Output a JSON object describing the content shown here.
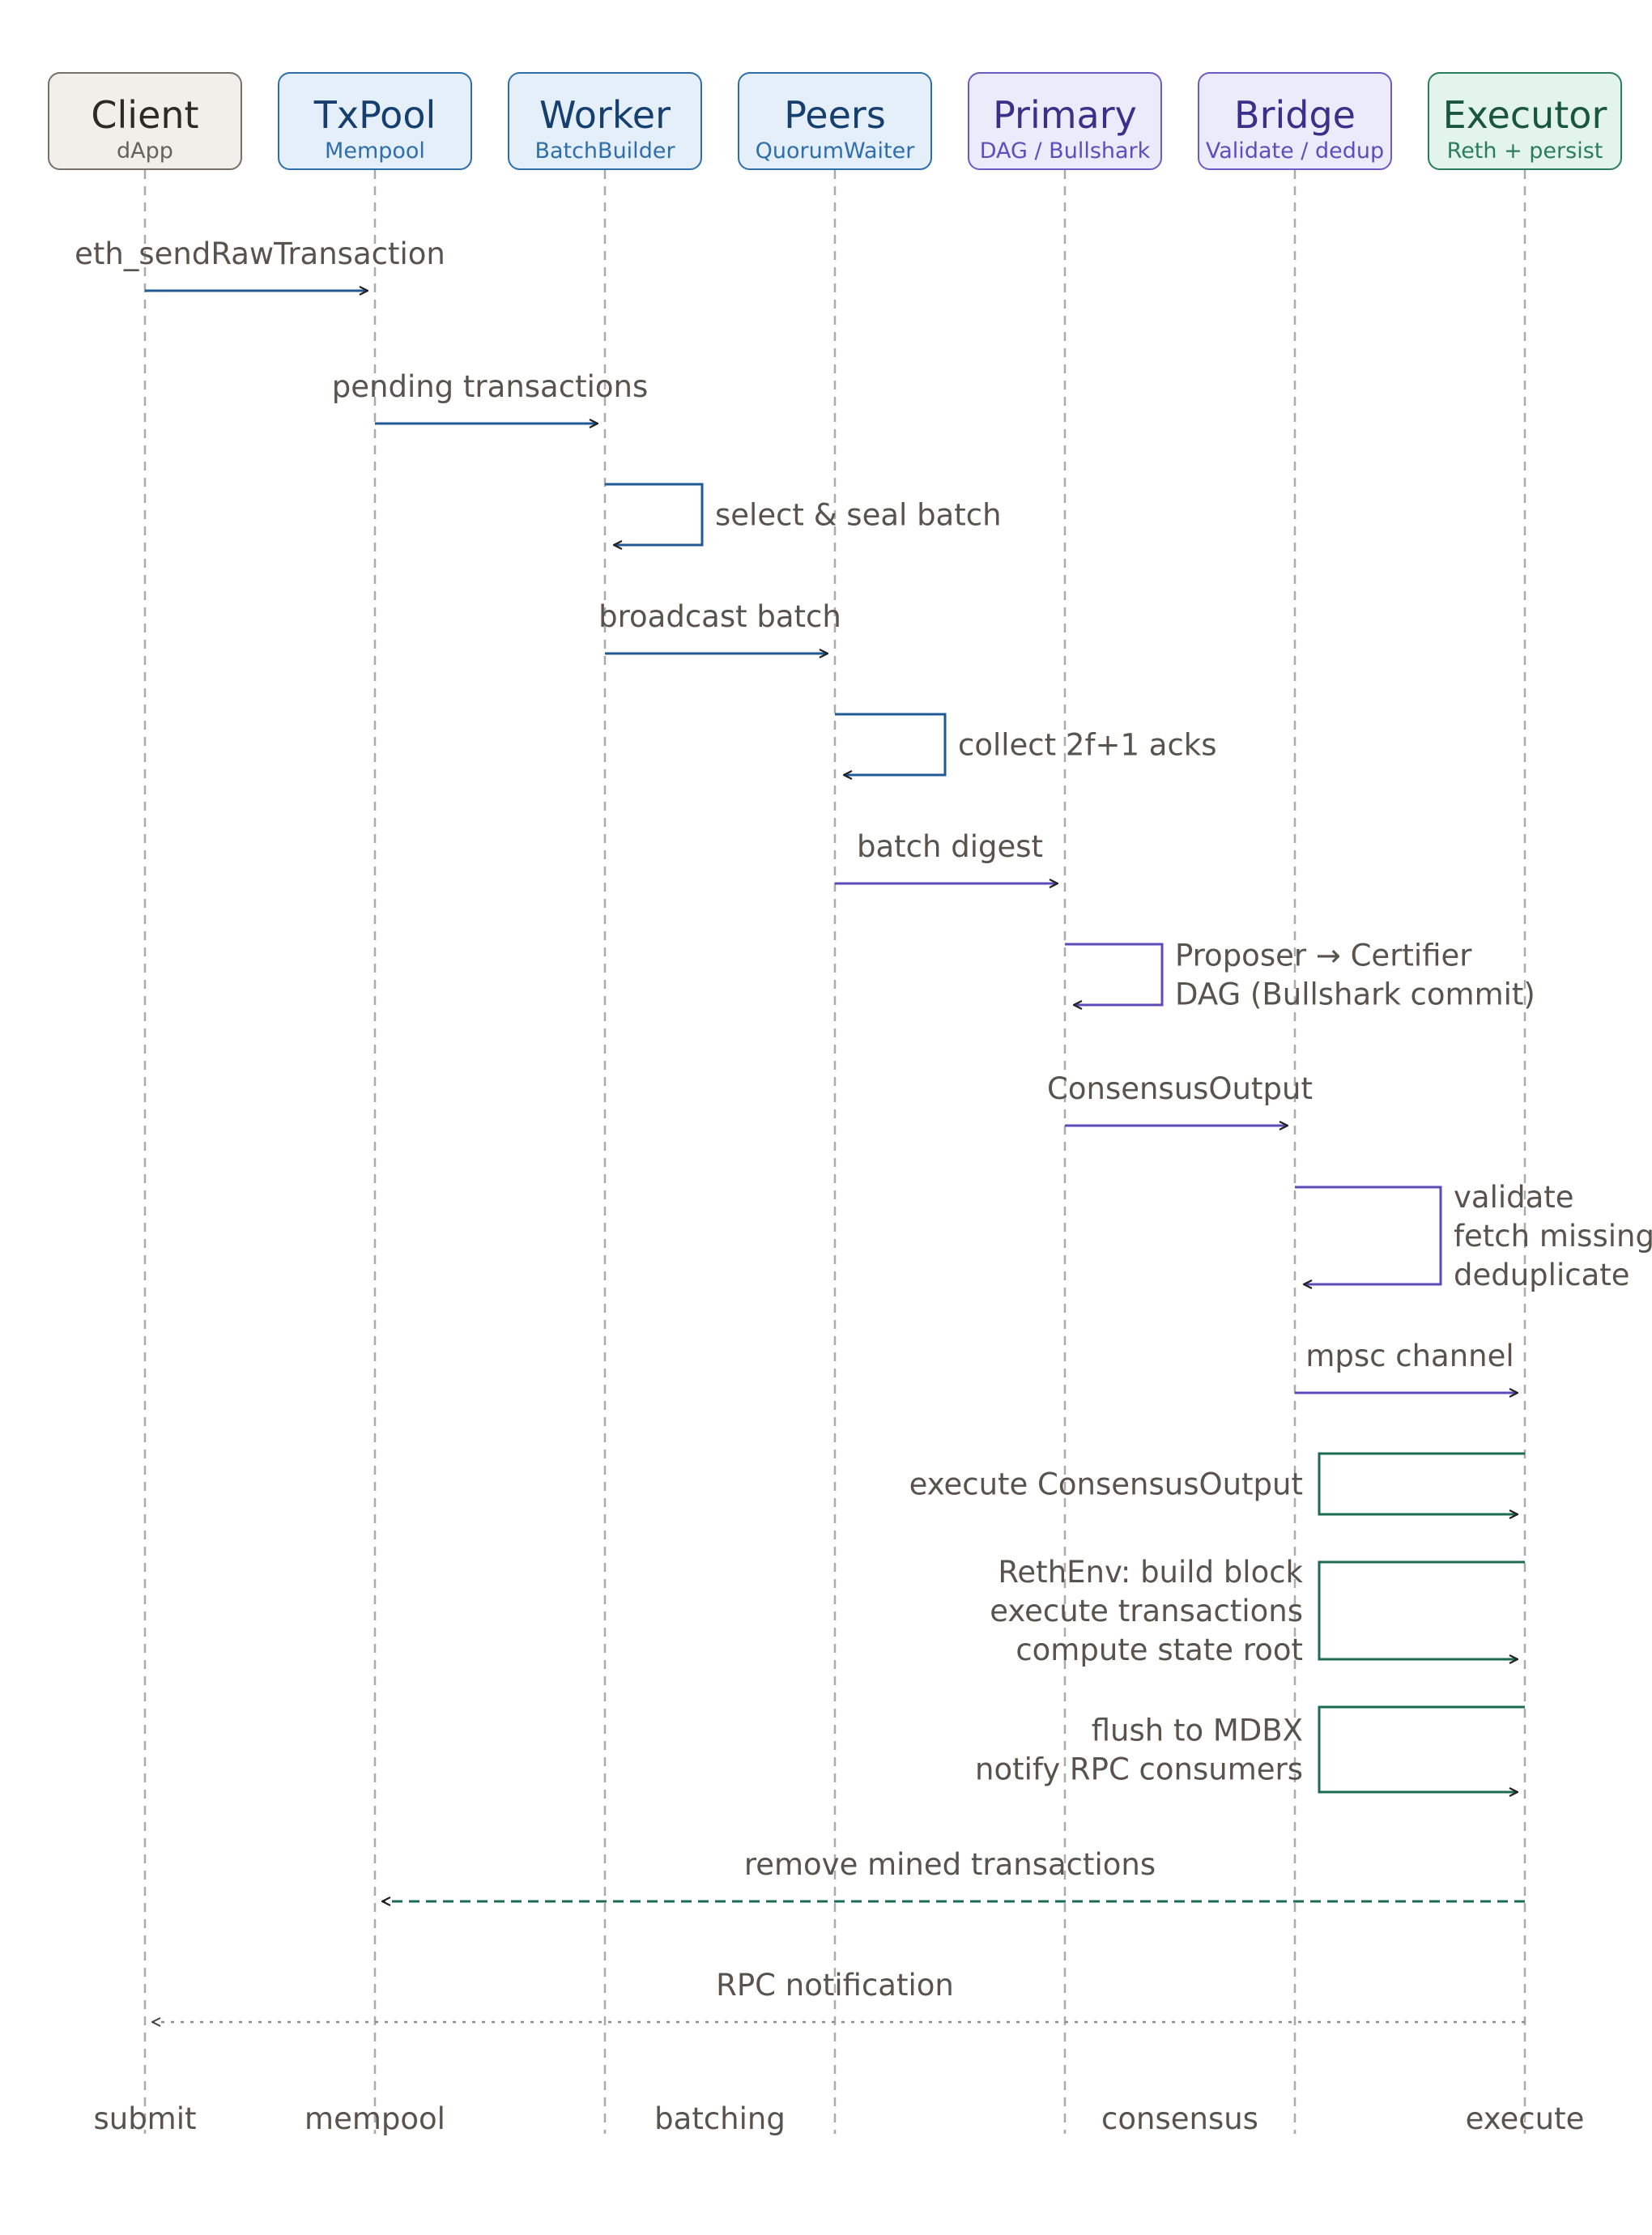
{
  "participants": [
    {
      "name": "Client",
      "subtitle": "dApp"
    },
    {
      "name": "TxPool",
      "subtitle": "Mempool"
    },
    {
      "name": "Worker",
      "subtitle": "BatchBuilder"
    },
    {
      "name": "Peers",
      "subtitle": "QuorumWaiter"
    },
    {
      "name": "Primary",
      "subtitle": "DAG / Bullshark"
    },
    {
      "name": "Bridge",
      "subtitle": "Validate / dedup"
    },
    {
      "name": "Executor",
      "subtitle": "Reth + persist"
    }
  ],
  "messages": [
    {
      "from": "Client",
      "to": "TxPool",
      "lines": [
        "eth_sendRawTransaction"
      ]
    },
    {
      "from": "TxPool",
      "to": "Worker",
      "lines": [
        "pending transactions"
      ]
    },
    {
      "from": "Worker",
      "to": "Worker",
      "lines": [
        "select & seal batch"
      ]
    },
    {
      "from": "Worker",
      "to": "Peers",
      "lines": [
        "broadcast batch"
      ]
    },
    {
      "from": "Peers",
      "to": "Peers",
      "lines": [
        "collect 2f+1 acks"
      ]
    },
    {
      "from": "Peers",
      "to": "Primary",
      "lines": [
        "batch digest"
      ]
    },
    {
      "from": "Primary",
      "to": "Primary",
      "lines": [
        "Proposer → Certifier",
        "DAG (Bullshark commit)"
      ]
    },
    {
      "from": "Primary",
      "to": "Bridge",
      "lines": [
        "ConsensusOutput"
      ]
    },
    {
      "from": "Bridge",
      "to": "Bridge",
      "lines": [
        "validate",
        "fetch missing",
        "deduplicate"
      ]
    },
    {
      "from": "Bridge",
      "to": "Executor",
      "lines": [
        "mpsc channel"
      ]
    },
    {
      "from": "Executor",
      "to": "Executor",
      "lines": [
        "execute ConsensusOutput"
      ]
    },
    {
      "from": "Executor",
      "to": "Executor",
      "lines": [
        "RethEnv: build block",
        "execute transactions",
        "compute state root"
      ]
    },
    {
      "from": "Executor",
      "to": "Executor",
      "lines": [
        "flush to MDBX",
        "notify RPC consumers"
      ]
    },
    {
      "from": "Executor",
      "to": "TxPool",
      "lines": [
        "remove mined transactions"
      ],
      "style": "dashed"
    },
    {
      "from": "Executor",
      "to": "Client",
      "lines": [
        "RPC notification"
      ],
      "style": "dotted"
    }
  ],
  "phases": [
    "submit",
    "mempool",
    "batching",
    "consensus",
    "execute"
  ],
  "colors": {
    "neutral": "#58534d",
    "blue": "#1f5a96",
    "purple": "#5b4bb8",
    "green": "#1d6b50"
  }
}
